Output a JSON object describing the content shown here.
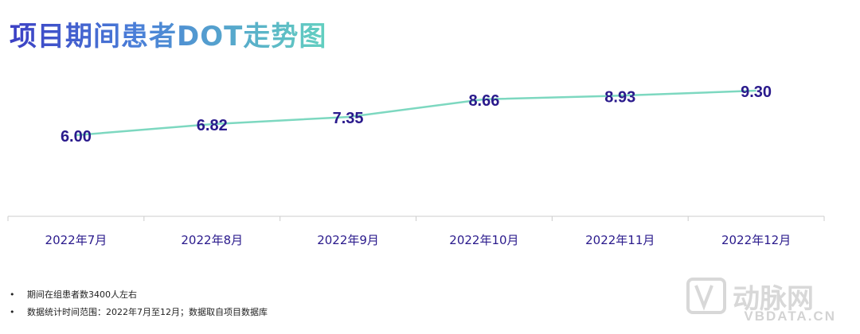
{
  "title": "项目期间患者DOT走势图",
  "chart_data": {
    "type": "line",
    "categories": [
      "2022年7月",
      "2022年8月",
      "2022年9月",
      "2022年10月",
      "2022年11月",
      "2022年12月"
    ],
    "values": [
      6.0,
      6.82,
      7.35,
      8.66,
      8.93,
      9.3
    ],
    "value_labels": [
      "6.00",
      "6.82",
      "7.35",
      "8.66",
      "8.93",
      "9.30"
    ],
    "line_color": "#7dd8c0",
    "label_color": "#2a1a8c",
    "category_color": "#2a1a8c",
    "ylim": [
      0,
      10.5
    ]
  },
  "notes": [
    "期间在组患者数3400人左右",
    "数据统计时间范围：2022年7月至12月；数据取自项目数据库"
  ],
  "watermark": {
    "logo_text": "动脉网",
    "site": "VBDATA.CN"
  }
}
